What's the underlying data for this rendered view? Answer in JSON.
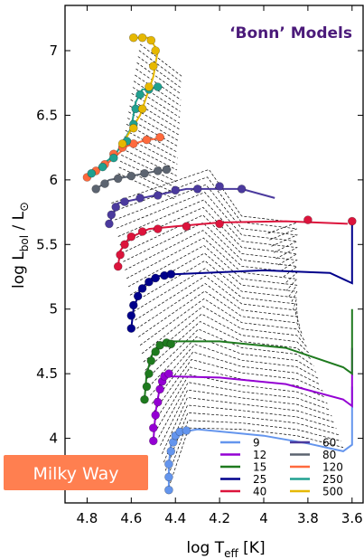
{
  "chart_data": {
    "type": "scatter",
    "title": "‘Bonn’ Models",
    "title_color": "#4b1a7a",
    "badge": {
      "text": "Milky Way",
      "color": "#ff7f50"
    },
    "xlabel_main": "log T",
    "xlabel_sub": "eff",
    "xlabel_tail": " [K]",
    "ylabel_main": "log L",
    "ylabel_sub": "bol",
    "ylabel_tail": " / L",
    "ylabel_sym": "⊙",
    "xlim": [
      4.9,
      3.55
    ],
    "ylim": [
      3.5,
      7.35
    ],
    "x_reversed": true,
    "xticks": [
      {
        "value": 4.8,
        "label": "4.8"
      },
      {
        "value": 4.6,
        "label": "4.6"
      },
      {
        "value": 4.4,
        "label": "4.4"
      },
      {
        "value": 4.2,
        "label": "4.2"
      },
      {
        "value": 4.0,
        "label": "4"
      },
      {
        "value": 3.8,
        "label": "3.8"
      },
      {
        "value": 3.6,
        "label": "3.6"
      }
    ],
    "yticks": [
      {
        "value": 4.0,
        "label": "4"
      },
      {
        "value": 4.5,
        "label": "4.5"
      },
      {
        "value": 5.0,
        "label": "5"
      },
      {
        "value": 5.5,
        "label": "5.5"
      },
      {
        "value": 6.0,
        "label": "6"
      },
      {
        "value": 6.5,
        "label": "6.5"
      },
      {
        "value": 7.0,
        "label": "7"
      }
    ],
    "grid": false,
    "legend_position": "bottom-right",
    "series": [
      {
        "name": "9",
        "color": "#6495ed",
        "track": [
          [
            4.43,
            3.6
          ],
          [
            4.43,
            3.8
          ],
          [
            4.42,
            3.95
          ],
          [
            4.4,
            4.04
          ],
          [
            4.3,
            4.07
          ],
          [
            4.0,
            4.02
          ],
          [
            3.8,
            3.96
          ],
          [
            3.64,
            3.9
          ],
          [
            3.6,
            3.95
          ],
          [
            3.6,
            4.4
          ]
        ],
        "dots": [
          [
            4.43,
            3.6
          ],
          [
            4.43,
            3.7
          ],
          [
            4.43,
            3.8
          ],
          [
            4.42,
            3.9
          ],
          [
            4.41,
            3.97
          ],
          [
            4.4,
            4.02
          ],
          [
            4.38,
            4.05
          ],
          [
            4.35,
            4.06
          ]
        ]
      },
      {
        "name": "12",
        "color": "#9400d3",
        "track": [
          [
            4.5,
            3.98
          ],
          [
            4.49,
            4.2
          ],
          [
            4.47,
            4.4
          ],
          [
            4.44,
            4.48
          ],
          [
            4.2,
            4.47
          ],
          [
            3.9,
            4.42
          ],
          [
            3.64,
            4.3
          ],
          [
            3.6,
            4.25
          ],
          [
            3.6,
            4.7
          ]
        ],
        "dots": [
          [
            4.5,
            3.98
          ],
          [
            4.5,
            4.08
          ],
          [
            4.49,
            4.18
          ],
          [
            4.48,
            4.28
          ],
          [
            4.47,
            4.38
          ],
          [
            4.46,
            4.44
          ],
          [
            4.45,
            4.48
          ],
          [
            4.43,
            4.5
          ]
        ]
      },
      {
        "name": "15",
        "color": "#1e7a1e",
        "track": [
          [
            4.54,
            4.3
          ],
          [
            4.53,
            4.5
          ],
          [
            4.5,
            4.68
          ],
          [
            4.45,
            4.75
          ],
          [
            4.2,
            4.75
          ],
          [
            3.9,
            4.7
          ],
          [
            3.64,
            4.55
          ],
          [
            3.6,
            4.5
          ],
          [
            3.6,
            5.0
          ]
        ],
        "dots": [
          [
            4.54,
            4.3
          ],
          [
            4.53,
            4.4
          ],
          [
            4.52,
            4.5
          ],
          [
            4.51,
            4.6
          ],
          [
            4.49,
            4.67
          ],
          [
            4.47,
            4.72
          ],
          [
            4.44,
            4.74
          ],
          [
            4.42,
            4.73
          ]
        ]
      },
      {
        "name": "25",
        "color": "#00008b",
        "track": [
          [
            4.6,
            4.85
          ],
          [
            4.59,
            5.0
          ],
          [
            4.56,
            5.15
          ],
          [
            4.5,
            5.25
          ],
          [
            4.4,
            5.27
          ],
          [
            4.0,
            5.3
          ],
          [
            3.7,
            5.28
          ],
          [
            3.6,
            5.2
          ],
          [
            3.6,
            5.7
          ]
        ],
        "dots": [
          [
            4.6,
            4.85
          ],
          [
            4.6,
            4.95
          ],
          [
            4.59,
            5.03
          ],
          [
            4.57,
            5.1
          ],
          [
            4.55,
            5.16
          ],
          [
            4.52,
            5.21
          ],
          [
            4.49,
            5.24
          ],
          [
            4.45,
            5.26
          ],
          [
            4.42,
            5.27
          ]
        ]
      },
      {
        "name": "40",
        "color": "#dc143c",
        "track": [
          [
            4.66,
            5.33
          ],
          [
            4.65,
            5.45
          ],
          [
            4.61,
            5.55
          ],
          [
            4.52,
            5.62
          ],
          [
            4.4,
            5.64
          ],
          [
            4.2,
            5.67
          ],
          [
            3.9,
            5.68
          ],
          [
            3.62,
            5.66
          ]
        ],
        "dots": [
          [
            4.66,
            5.33
          ],
          [
            4.65,
            5.42
          ],
          [
            4.63,
            5.5
          ],
          [
            4.6,
            5.56
          ],
          [
            4.55,
            5.6
          ],
          [
            4.48,
            5.62
          ],
          [
            4.35,
            5.64
          ],
          [
            4.2,
            5.66
          ],
          [
            3.8,
            5.69
          ],
          [
            3.6,
            5.68
          ]
        ]
      },
      {
        "name": "60",
        "color": "#4b3a9e",
        "track": [
          [
            4.7,
            5.66
          ],
          [
            4.66,
            5.82
          ],
          [
            4.55,
            5.86
          ],
          [
            4.35,
            5.93
          ],
          [
            4.1,
            5.93
          ],
          [
            3.95,
            5.86
          ]
        ],
        "dots": [
          [
            4.7,
            5.66
          ],
          [
            4.69,
            5.73
          ],
          [
            4.67,
            5.79
          ],
          [
            4.63,
            5.83
          ],
          [
            4.56,
            5.86
          ],
          [
            4.48,
            5.88
          ],
          [
            4.4,
            5.92
          ],
          [
            4.3,
            5.93
          ],
          [
            4.2,
            5.95
          ],
          [
            4.1,
            5.93
          ]
        ]
      },
      {
        "name": "80",
        "color": "#5c6470",
        "track": [
          [
            4.76,
            5.93
          ],
          [
            4.7,
            6.0
          ],
          [
            4.6,
            6.03
          ],
          [
            4.48,
            6.07
          ],
          [
            4.42,
            6.08
          ]
        ],
        "dots": [
          [
            4.76,
            5.93
          ],
          [
            4.72,
            5.97
          ],
          [
            4.66,
            6.01
          ],
          [
            4.6,
            6.03
          ],
          [
            4.54,
            6.05
          ],
          [
            4.48,
            6.07
          ],
          [
            4.44,
            6.08
          ]
        ]
      },
      {
        "name": "120",
        "color": "#ff6a3d",
        "track": [
          [
            4.8,
            6.02
          ],
          [
            4.7,
            6.14
          ],
          [
            4.62,
            6.26
          ],
          [
            4.55,
            6.3
          ],
          [
            4.45,
            6.33
          ]
        ],
        "dots": [
          [
            4.8,
            6.02
          ],
          [
            4.76,
            6.07
          ],
          [
            4.72,
            6.12
          ],
          [
            4.68,
            6.2
          ],
          [
            4.64,
            6.25
          ],
          [
            4.59,
            6.28
          ],
          [
            4.53,
            6.31
          ],
          [
            4.47,
            6.33
          ]
        ]
      },
      {
        "name": "250",
        "color": "#20a090",
        "track": [
          [
            4.78,
            6.05
          ],
          [
            4.67,
            6.2
          ],
          [
            4.6,
            6.4
          ],
          [
            4.58,
            6.6
          ],
          [
            4.55,
            6.7
          ],
          [
            4.46,
            6.72
          ]
        ],
        "dots": [
          [
            4.78,
            6.05
          ],
          [
            4.73,
            6.1
          ],
          [
            4.68,
            6.17
          ],
          [
            4.62,
            6.3
          ],
          [
            4.59,
            6.43
          ],
          [
            4.58,
            6.55
          ],
          [
            4.56,
            6.66
          ],
          [
            4.52,
            6.7
          ],
          [
            4.48,
            6.72
          ]
        ]
      },
      {
        "name": "500",
        "color": "#e6b800",
        "track": [
          [
            4.64,
            6.28
          ],
          [
            4.56,
            6.5
          ],
          [
            4.5,
            6.8
          ],
          [
            4.48,
            7.0
          ],
          [
            4.52,
            7.1
          ],
          [
            4.6,
            7.1
          ]
        ],
        "dots": [
          [
            4.64,
            6.28
          ],
          [
            4.59,
            6.4
          ],
          [
            4.55,
            6.55
          ],
          [
            4.52,
            6.72
          ],
          [
            4.5,
            6.88
          ],
          [
            4.49,
            7.0
          ],
          [
            4.51,
            7.08
          ],
          [
            4.55,
            7.1
          ],
          [
            4.59,
            7.1
          ]
        ]
      }
    ]
  }
}
